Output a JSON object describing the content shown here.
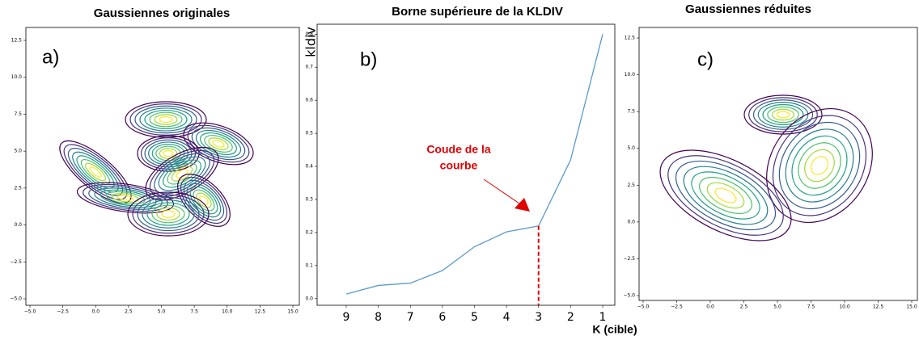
{
  "chart_data": [
    {
      "type": "contour",
      "title": "Gaussiennes originales",
      "panel_label": "a)",
      "xlim": [
        -5,
        15
      ],
      "ylim": [
        -5,
        12.5
      ],
      "xticks": [
        {
          "value": -5,
          "label": "−5.0"
        },
        {
          "value": -2.5,
          "label": "−2.5"
        },
        {
          "value": 0,
          "label": "0.0"
        },
        {
          "value": 2.5,
          "label": "2.5"
        },
        {
          "value": 5,
          "label": "5.0"
        },
        {
          "value": 7.5,
          "label": "7.5"
        },
        {
          "value": 10,
          "label": "10.0"
        },
        {
          "value": 12.5,
          "label": "12.5"
        },
        {
          "value": 15,
          "label": "15.0"
        }
      ],
      "yticks": [
        {
          "value": -5,
          "label": "−5.0"
        },
        {
          "value": -2.5,
          "label": "−2.5"
        },
        {
          "value": 0,
          "label": "0.0"
        },
        {
          "value": 2.5,
          "label": "2.5"
        },
        {
          "value": 5,
          "label": "5.0"
        },
        {
          "value": 7.5,
          "label": "7.5"
        },
        {
          "value": 10,
          "label": "10.0"
        },
        {
          "value": 12.5,
          "label": "12.5"
        }
      ]
    },
    {
      "type": "line",
      "title": "Borne supérieure de la KLDIV",
      "panel_label": "b)",
      "x_label": "K (cible)",
      "y_label": "kldiv",
      "categories": [
        "9",
        "8",
        "7",
        "6",
        "5",
        "4",
        "3",
        "2",
        "1"
      ],
      "values": [
        0.014,
        0.04,
        0.047,
        0.085,
        0.157,
        0.202,
        0.22,
        0.42,
        0.8
      ],
      "color": "#5b9bc8",
      "ylim": [
        -0.02,
        0.83
      ],
      "yticks": [
        {
          "value": 0,
          "label": "0.0"
        },
        0.1,
        0.2,
        0.3,
        0.4,
        0.5,
        0.6,
        0.7,
        0.8
      ],
      "annotation": [
        "Coude de la",
        "courbe"
      ]
    },
    {
      "type": "contour",
      "title": "Gaussiennes réduites",
      "panel_label": "c)",
      "xlim": [
        -5,
        15
      ],
      "ylim": [
        -5,
        12.5
      ],
      "xticks": [
        {
          "value": -5,
          "label": "−5.0"
        },
        {
          "value": -2.5,
          "label": "−2.5"
        },
        {
          "value": 0,
          "label": "0.0"
        },
        {
          "value": 2.5,
          "label": "2.5"
        },
        {
          "value": 5,
          "label": "5.0"
        },
        {
          "value": 7.5,
          "label": "7.5"
        },
        {
          "value": 10,
          "label": "10.0"
        },
        {
          "value": 12.5,
          "label": "12.5"
        },
        {
          "value": 15,
          "label": "15.0"
        }
      ],
      "yticks": [
        {
          "value": -5,
          "label": "−5.0"
        },
        {
          "value": -2.5,
          "label": "−2.5"
        },
        {
          "value": 0,
          "label": "0.0"
        },
        {
          "value": 2.5,
          "label": "2.5"
        },
        {
          "value": 5,
          "label": "5.0"
        },
        {
          "value": 7.5,
          "label": "7.5"
        },
        {
          "value": 10,
          "label": "10.0"
        },
        {
          "value": 12.5,
          "label": "12.5"
        }
      ]
    }
  ]
}
